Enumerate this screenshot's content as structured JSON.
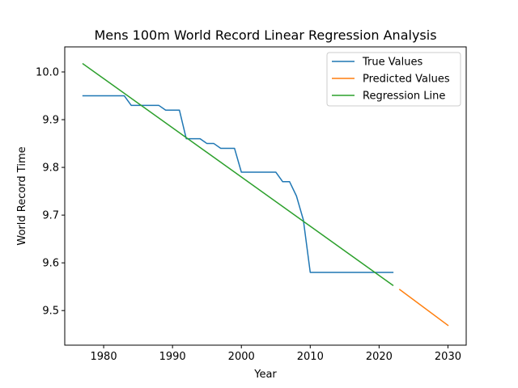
{
  "chart_data": {
    "type": "line",
    "title": "Mens 100m World Record Linear Regression Analysis",
    "xlabel": "Year",
    "ylabel": "World Record Time",
    "xlim": [
      1974.35,
      2032.65
    ],
    "ylim": [
      9.4275,
      10.0525
    ],
    "xticks": [
      1980,
      1990,
      2000,
      2010,
      2020,
      2030
    ],
    "yticks": [
      9.5,
      9.6,
      9.7,
      9.8,
      9.9,
      10.0
    ],
    "grid": false,
    "legend_position": "top-right",
    "series": [
      {
        "name": "True Values",
        "color": "#1f77b4",
        "x": [
          1977,
          1983,
          1984,
          1988,
          1989,
          1991,
          1992,
          1994,
          1995,
          1996,
          1997,
          1999,
          2000,
          2005,
          2006,
          2007,
          2008,
          2009,
          2010,
          2022
        ],
        "y": [
          9.95,
          9.95,
          9.93,
          9.93,
          9.92,
          9.92,
          9.86,
          9.86,
          9.85,
          9.85,
          9.84,
          9.84,
          9.79,
          9.79,
          9.77,
          9.77,
          9.74,
          9.69,
          9.58,
          9.58
        ]
      },
      {
        "name": "Predicted Values",
        "color": "#ff7f0e",
        "x": [
          2023,
          2030
        ],
        "y": [
          9.544,
          9.469
        ]
      },
      {
        "name": "Regression Line",
        "color": "#2ca02c",
        "x": [
          1977,
          2022
        ],
        "y": [
          10.017,
          9.553
        ]
      }
    ]
  }
}
